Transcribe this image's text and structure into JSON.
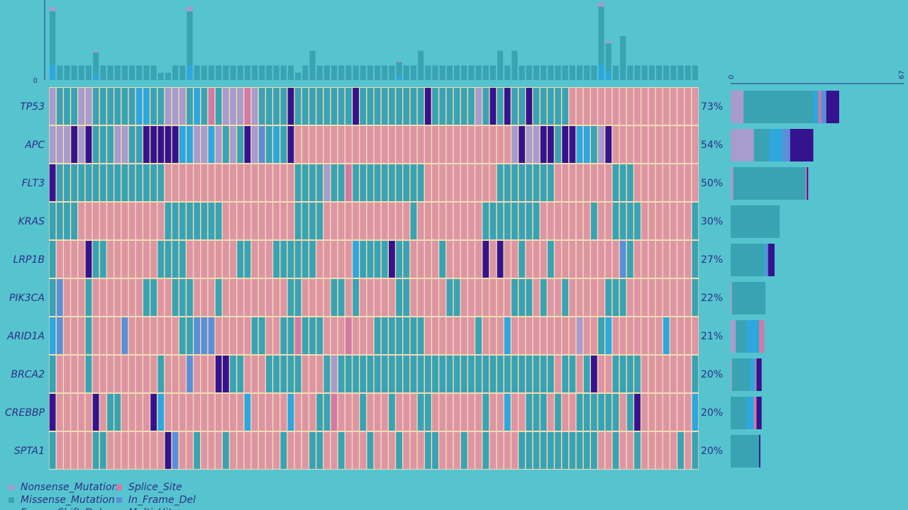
{
  "colors": {
    "background": "#56c4cf",
    "none": "#dd95a3",
    "grid": "#f2dcb6",
    "Nonsense_Mutation": "#a79ccb",
    "Missense_Mutation": "#39a3b3",
    "Frame_Shift_Del": "#2da7dd",
    "Splice_Site": "#d27aa4",
    "In_Frame_Del": "#5b8fd8",
    "Multi_Hit": "#35138e",
    "axis": "#2b2f86"
  },
  "chart_data": {
    "type": "heatmap",
    "title": "",
    "samples_count": 90,
    "genes": [
      {
        "name": "TP53",
        "pct": "73%",
        "counts": {
          "Nonsense_Mutation": 5,
          "Missense_Mutation": 27,
          "Frame_Shift_Del": 2,
          "Splice_Site": 1,
          "In_Frame_Del": 2,
          "Multi_Hit": 5
        }
      },
      {
        "name": "APC",
        "pct": "54%",
        "counts": {
          "Nonsense_Mutation": 9,
          "Missense_Mutation": 6,
          "Frame_Shift_Del": 5,
          "In_Frame_Del": 3,
          "Multi_Hit": 9
        }
      },
      {
        "name": "FLT3",
        "pct": "50%",
        "counts": {
          "Nonsense_Mutation": 1,
          "Missense_Mutation": 28,
          "Splice_Site": 0.5,
          "Multi_Hit": 0.5
        }
      },
      {
        "name": "KRAS",
        "pct": "30%",
        "counts": {
          "Missense_Mutation": 19
        }
      },
      {
        "name": "LRP1B",
        "pct": "27%",
        "counts": {
          "Missense_Mutation": 13,
          "In_Frame_Del": 1,
          "Frame_Shift_Del": 0.5,
          "Multi_Hit": 2.5
        }
      },
      {
        "name": "PIK3CA",
        "pct": "22%",
        "counts": {
          "Missense_Mutation": 13,
          "Nonsense_Mutation": 0.5
        }
      },
      {
        "name": "ARID1A",
        "pct": "21%",
        "counts": {
          "Nonsense_Mutation": 2,
          "Missense_Mutation": 4,
          "Frame_Shift_Del": 5,
          "Splice_Site": 2
        }
      },
      {
        "name": "BRCA2",
        "pct": "20%",
        "counts": {
          "Nonsense_Mutation": 0.5,
          "Missense_Mutation": 7,
          "Frame_Shift_Del": 2,
          "Splice_Site": 0.5,
          "Multi_Hit": 2
        }
      },
      {
        "name": "CREBBP",
        "pct": "20%",
        "counts": {
          "Missense_Mutation": 6,
          "Frame_Shift_Del": 3,
          "Splice_Site": 1,
          "Multi_Hit": 2
        }
      },
      {
        "name": "SPTA1",
        "pct": "20%",
        "counts": {
          "Missense_Mutation": 11,
          "Multi_Hit": 0.5
        }
      }
    ],
    "matrix": [
      "mMMMmmMMMMMMFFMMmmmMFMSMmmmSmMMMMXMMMMMMMMXMMMMMMMMMXMMMMMMmMXMXMMXMMMMM..................",
      "nmmXmXMMMnnMMXXXXXFFmmFmMmMXmDMFMX..............................nXmmXXMXXFFMmX............",
      "XMMMMMMMMMMMMMMM..................MMMMmMMSMMMMMMMMMM..........MMMMMMMM........MMM.........",
      "MMMM............MMMMMMMM..........MMMM............M.........MMMMMMMM.......M..MMMM.......MM",
      "M....XMM.......MMMM.......MM...MMMMMM.....FMMMMXMM....M.....X.X..M...M.........DM........M",
      "MD...M.......MM..MMM...M.........MM....MM.M.....MM.....MM.......MMM.M..M.....MMM.........M",
      "FD...M....D.......MMDDD.....MM..MMSMMM...S...MMMMMMM.......M...F.........n..MF.......F...",
      "M....M.........M...D...XXMM...MMMMM...MnMMMMMMMMMMMMMMMMMMMMMMMMMMMMMM.MM.MX..MMMM.......M",
      "X.....X.MM....XF...........F.....F...MMS...M...M...MM.......M..F..MMM.M..MMMMMM.MX.......F",
      "M.....MM........XD..M...M.......M...MM..M...M...M...MM...M..M....MMMMMMMMMMM..M..M.....M.M"
    ],
    "top_bar": {
      "ylabel_max": "",
      "ylabel_min": "0",
      "values": [
        15,
        1,
        1,
        1,
        1,
        1,
        6,
        1,
        1,
        1,
        1,
        1,
        1,
        1,
        1,
        0.5,
        0.5,
        1,
        1,
        15,
        1,
        1,
        1,
        1,
        1,
        1,
        1,
        1,
        1,
        1,
        1,
        1,
        1,
        1,
        0.5,
        1,
        2,
        1,
        1,
        1,
        1,
        1,
        1,
        1,
        1,
        1,
        1,
        1,
        4,
        1,
        1,
        2,
        1,
        1,
        1,
        1,
        1,
        1,
        1,
        1,
        1,
        1,
        2,
        1,
        2,
        1,
        1,
        1,
        1,
        1,
        1,
        1,
        1,
        1,
        1,
        1,
        16,
        8,
        1,
        3,
        1,
        1,
        1,
        1,
        1,
        1,
        1,
        1,
        1,
        1
      ]
    },
    "side_bar": {
      "xlabel_min": "0",
      "xlabel_max": "67",
      "max": 67
    },
    "legend": [
      {
        "label": "Nonsense_Mutation",
        "key": "Nonsense_Mutation"
      },
      {
        "label": "Missense_Mutation",
        "key": "Missense_Mutation"
      },
      {
        "label": "Frame_Shift_Del",
        "key": "Frame_Shift_Del"
      },
      {
        "label": "Splice_Site",
        "key": "Splice_Site"
      },
      {
        "label": "In_Frame_Del",
        "key": "In_Frame_Del"
      },
      {
        "label": "Multi_Hit",
        "key": "Multi_Hit"
      }
    ]
  }
}
